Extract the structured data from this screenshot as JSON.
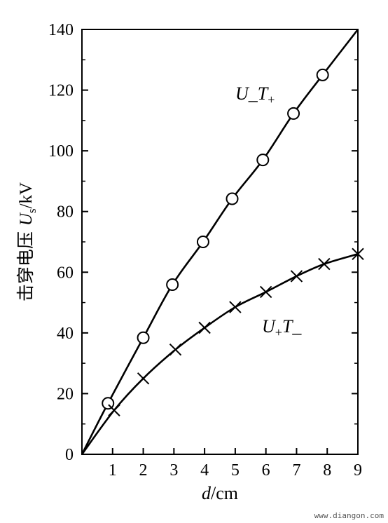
{
  "chart_data": {
    "type": "line",
    "xlabel": "d/cm",
    "ylabel": "击穿电压 Us/kV",
    "xlim": [
      0,
      9
    ],
    "ylim": [
      0,
      140
    ],
    "x_ticks": [
      1,
      2,
      3,
      4,
      5,
      6,
      7,
      8,
      9
    ],
    "y_ticks": [
      0,
      20,
      40,
      60,
      80,
      100,
      120,
      140
    ],
    "grid": false,
    "series": [
      {
        "name": "U_T+",
        "marker": "circle",
        "points": [
          [
            0,
            0
          ],
          [
            0.85,
            16.8
          ],
          [
            2.0,
            38.4
          ],
          [
            2.95,
            55.9
          ],
          [
            3.95,
            70.0
          ],
          [
            4.9,
            84.2
          ],
          [
            5.9,
            97.0
          ],
          [
            6.9,
            112.3
          ],
          [
            7.85,
            125.0
          ],
          [
            9.0,
            140.0
          ]
        ],
        "markers_x": [
          0.85,
          2.0,
          2.95,
          3.95,
          4.9,
          5.9,
          6.9,
          7.85
        ],
        "markers_y": [
          16.8,
          38.4,
          55.9,
          70.0,
          84.2,
          97.0,
          112.3,
          125.0
        ]
      },
      {
        "name": "U+T_",
        "marker": "x",
        "points": [
          [
            0,
            0
          ],
          [
            1.05,
            14.5
          ],
          [
            2.0,
            25.0
          ],
          [
            3.05,
            34.5
          ],
          [
            4.0,
            41.7
          ],
          [
            5.0,
            48.5
          ],
          [
            6.0,
            53.5
          ],
          [
            7.0,
            58.7
          ],
          [
            7.9,
            62.7
          ],
          [
            9.0,
            66.0
          ]
        ],
        "markers_x": [
          1.05,
          2.0,
          3.05,
          4.0,
          5.0,
          6.0,
          7.0,
          7.9,
          9.0
        ],
        "markers_y": [
          14.5,
          25.0,
          34.5,
          41.7,
          48.5,
          53.5,
          58.7,
          62.7,
          66.0
        ]
      }
    ]
  },
  "labels": {
    "y_zero": "0",
    "series1_main": "U_T",
    "series1_sub": "+",
    "series2_main": "U",
    "series2_sub": "+",
    "series2_tail": "T_",
    "xlabel_italic": "d",
    "xlabel_rest": "/cm",
    "ylabel_cn": "击穿电压 ",
    "ylabel_u": "U",
    "ylabel_sub": "s",
    "ylabel_unit": "/kV"
  },
  "watermark": "www.diangon.com"
}
